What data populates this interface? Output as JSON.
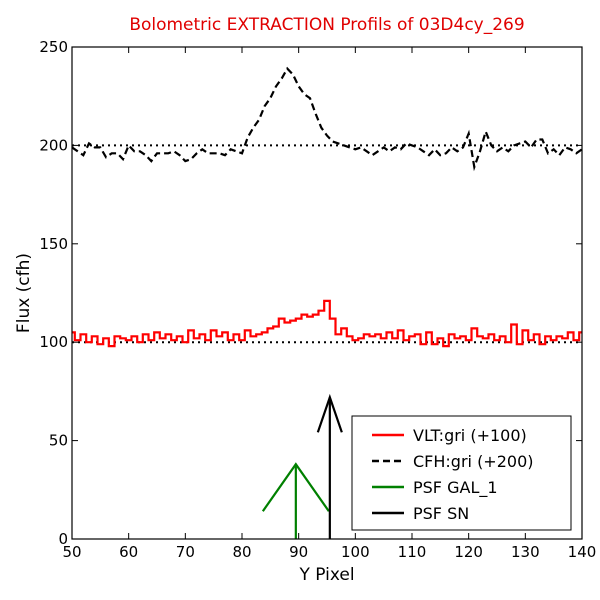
{
  "chart_data": {
    "type": "line",
    "title": "Bolometric EXTRACTION Profils of 03D4cy_269",
    "xlabel": "Y Pixel",
    "ylabel": "Flux (cfh)",
    "xlim": [
      50,
      140
    ],
    "ylim": [
      0,
      250
    ],
    "x_ticks": [
      "50",
      "60",
      "70",
      "80",
      "90",
      "100",
      "110",
      "120",
      "130",
      "140"
    ],
    "y_ticks": [
      "0",
      "50",
      "100",
      "150",
      "200",
      "250"
    ],
    "grid": false,
    "legend_position": "bottom-right",
    "reference_lines": [
      {
        "y": 100,
        "style": "dotted",
        "color": "#000000"
      },
      {
        "y": 200,
        "style": "dotted",
        "color": "#000000"
      }
    ],
    "series": [
      {
        "name": "VLT:gri (+100)",
        "color": "#ff0000",
        "style": "steps",
        "x": [
          50,
          51,
          52,
          53,
          54,
          55,
          56,
          57,
          58,
          59,
          60,
          61,
          62,
          63,
          64,
          65,
          66,
          67,
          68,
          69,
          70,
          71,
          72,
          73,
          74,
          75,
          76,
          77,
          78,
          79,
          80,
          81,
          82,
          83,
          84,
          85,
          86,
          87,
          88,
          89,
          90,
          91,
          92,
          93,
          94,
          95,
          96,
          97,
          98,
          99,
          100,
          101,
          102,
          103,
          104,
          105,
          106,
          107,
          108,
          109,
          110,
          111,
          112,
          113,
          114,
          115,
          116,
          117,
          118,
          119,
          120,
          121,
          122,
          123,
          124,
          125,
          126,
          127,
          128,
          129,
          130,
          131,
          132,
          133,
          134,
          135,
          136,
          137,
          138,
          139,
          140
        ],
        "values": [
          105,
          101,
          104,
          100,
          103,
          99,
          102,
          98,
          103,
          102,
          101,
          103,
          100,
          104,
          101,
          105,
          102,
          104,
          101,
          103,
          100,
          106,
          102,
          104,
          101,
          106,
          103,
          105,
          101,
          104,
          101,
          106,
          103,
          104,
          105,
          107,
          108,
          112,
          110,
          111,
          112,
          114,
          113,
          114,
          116,
          121,
          112,
          104,
          107,
          103,
          101,
          102,
          104,
          103,
          104,
          102,
          105,
          102,
          106,
          101,
          103,
          104,
          99,
          105,
          99,
          102,
          98,
          104,
          102,
          103,
          101,
          107,
          103,
          102,
          104,
          101,
          103,
          100,
          109,
          99,
          106,
          101,
          104,
          99,
          103,
          101,
          103,
          102,
          105,
          101,
          105
        ]
      },
      {
        "name": "CFH:gri (+200)",
        "color": "#000000",
        "style": "dashed",
        "x": [
          50,
          51,
          52,
          53,
          54,
          55,
          56,
          57,
          58,
          59,
          60,
          61,
          62,
          63,
          64,
          65,
          66,
          67,
          68,
          69,
          70,
          71,
          72,
          73,
          74,
          75,
          76,
          77,
          78,
          79,
          80,
          81,
          82,
          83,
          84,
          85,
          86,
          87,
          88,
          89,
          90,
          91,
          92,
          93,
          94,
          95,
          96,
          97,
          98,
          99,
          100,
          101,
          102,
          103,
          104,
          105,
          106,
          107,
          108,
          109,
          110,
          111,
          112,
          113,
          114,
          115,
          116,
          117,
          118,
          119,
          120,
          121,
          122,
          123,
          124,
          125,
          126,
          127,
          128,
          129,
          130,
          131,
          132,
          133,
          134,
          135,
          136,
          137,
          138,
          139,
          140
        ],
        "values": [
          199,
          197,
          195,
          201,
          199,
          199,
          194,
          196,
          196,
          193,
          200,
          197,
          197,
          195,
          192,
          196,
          196,
          196,
          197,
          195,
          192,
          193,
          196,
          198,
          196,
          196,
          196,
          195,
          198,
          197,
          196,
          204,
          209,
          213,
          220,
          224,
          230,
          234,
          239,
          236,
          230,
          226,
          224,
          216,
          209,
          205,
          202,
          201,
          200,
          199,
          198,
          199,
          197,
          195,
          197,
          199,
          197,
          199,
          198,
          201,
          200,
          199,
          197,
          195,
          198,
          195,
          196,
          199,
          197,
          199,
          206,
          189,
          197,
          207,
          200,
          197,
          199,
          197,
          200,
          201,
          202,
          199,
          203,
          203,
          196,
          198,
          195,
          199,
          198,
          196,
          198
        ]
      },
      {
        "name": "PSF GAL_1",
        "color": "#008000",
        "style": "psf-marker",
        "x": 89.5,
        "height": 38,
        "base": 0
      },
      {
        "name": "PSF SN",
        "color": "#000000",
        "style": "psf-marker",
        "x": 95.5,
        "height": 72,
        "base": 0
      }
    ]
  }
}
